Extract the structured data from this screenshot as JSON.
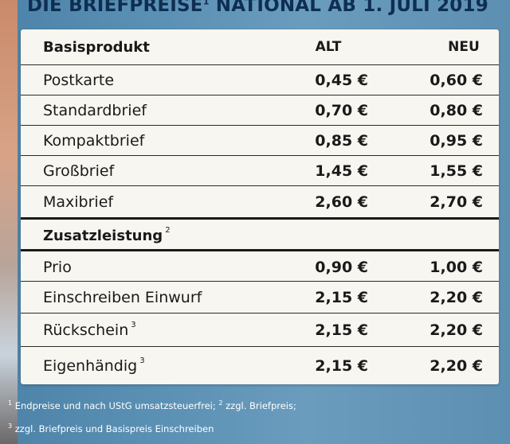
{
  "title": {
    "text_before": "DIE BRIEFPREISE",
    "sup": "1",
    "text_after": " NATIONAL AB 1. JULI 2019"
  },
  "table": {
    "header": {
      "name": "Basisprodukt",
      "alt": "ALT",
      "neu": "NEU"
    },
    "basis": [
      {
        "name": "Postkarte",
        "sup": "",
        "alt": "0,45 €",
        "neu": "0,60 €"
      },
      {
        "name": "Standardbrief",
        "sup": "",
        "alt": "0,70 €",
        "neu": "0,80 €"
      },
      {
        "name": "Kompaktbrief",
        "sup": "",
        "alt": "0,85 €",
        "neu": "0,95 €"
      },
      {
        "name": "Großbrief",
        "sup": "",
        "alt": "1,45 €",
        "neu": "1,55 €"
      },
      {
        "name": "Maxibrief",
        "sup": "",
        "alt": "2,60 €",
        "neu": "2,70 €"
      }
    ],
    "section2": {
      "name": "Zusatzleistung",
      "sup": "2"
    },
    "zusatz": [
      {
        "name": "Prio",
        "sup": "",
        "alt": "0,90 €",
        "neu": "1,00 €"
      },
      {
        "name": "Einschreiben Einwurf",
        "sup": "",
        "alt": "2,15 €",
        "neu": "2,20 €"
      },
      {
        "name": "Rückschein",
        "sup": "3",
        "alt": "2,15 €",
        "neu": "2,20 €"
      },
      {
        "name": "Eigenhändig",
        "sup": "3",
        "alt": "2,15 €",
        "neu": "2,20 €"
      }
    ]
  },
  "footnotes": {
    "line1": {
      "n1": "1",
      "t1": " Endpreise und nach UStG umsatzsteuerfrei; ",
      "n2": "2",
      "t2": " zzgl. Briefpreis;"
    },
    "line2": {
      "n3": "3",
      "t3": " zzgl. Briefpreis und Basispreis Einschreiben"
    }
  }
}
